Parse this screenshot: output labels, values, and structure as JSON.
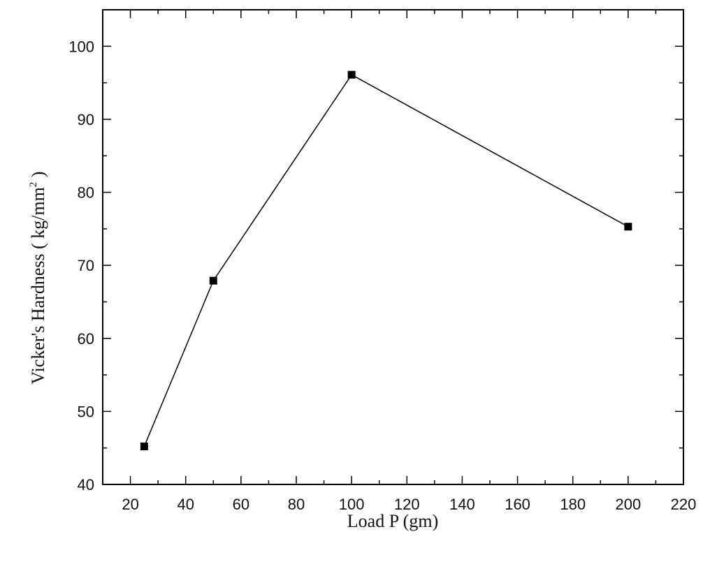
{
  "chart_data": {
    "type": "line",
    "title": "",
    "xlabel": "Load P (gm)",
    "ylabel": {
      "main": "Vicker's Hardness ( kg/mm",
      "superscript": "2",
      "close": " )"
    },
    "xlim": [
      10,
      220
    ],
    "ylim": [
      40,
      105
    ],
    "x_major_ticks": [
      20,
      40,
      60,
      80,
      100,
      120,
      140,
      160,
      180,
      200,
      220
    ],
    "x_minor_ticks": [
      10,
      30,
      50,
      70,
      90,
      110,
      130,
      150,
      170,
      190,
      210
    ],
    "y_major_ticks": [
      40,
      50,
      60,
      70,
      80,
      90,
      100
    ],
    "y_minor_ticks": [
      45,
      55,
      65,
      75,
      85,
      95,
      105
    ],
    "grid": false,
    "legend": "none",
    "series": [
      {
        "marker": "square",
        "color": "#000000",
        "x": [
          25,
          50,
          100,
          200
        ],
        "y": [
          45.2,
          67.9,
          96.1,
          75.3
        ]
      }
    ]
  }
}
